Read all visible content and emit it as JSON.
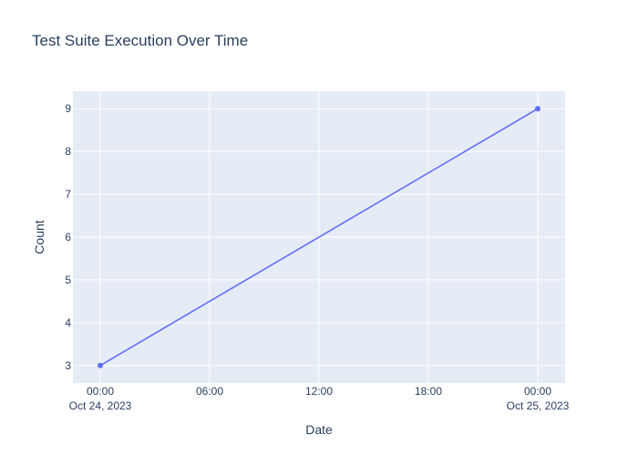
{
  "chart_data": {
    "type": "line",
    "title": "Test Suite Execution Over Time",
    "xlabel": "Date",
    "ylabel": "Count",
    "x_ticks": [
      {
        "value": "2023-10-24T00:00",
        "label": "00:00",
        "sublabel": "Oct 24, 2023"
      },
      {
        "value": "2023-10-24T06:00",
        "label": "06:00",
        "sublabel": ""
      },
      {
        "value": "2023-10-24T12:00",
        "label": "12:00",
        "sublabel": ""
      },
      {
        "value": "2023-10-24T18:00",
        "label": "18:00",
        "sublabel": ""
      },
      {
        "value": "2023-10-25T00:00",
        "label": "00:00",
        "sublabel": "Oct 25, 2023"
      }
    ],
    "y_ticks": [
      3,
      4,
      5,
      6,
      7,
      8,
      9
    ],
    "xlim": [
      "2023-10-23T22:30",
      "2023-10-25T01:30"
    ],
    "ylim": [
      2.59,
      9.41
    ],
    "grid": true,
    "series": [
      {
        "color": "#636efa",
        "mode": "lines+markers",
        "points": [
          {
            "x": "2023-10-24T00:00",
            "y": 3
          },
          {
            "x": "2023-10-25T00:00",
            "y": 9
          }
        ]
      }
    ],
    "colors": {
      "plot_bg": "#e5ecf6",
      "grid": "#ffffff",
      "text": "#2a3f5f"
    }
  }
}
